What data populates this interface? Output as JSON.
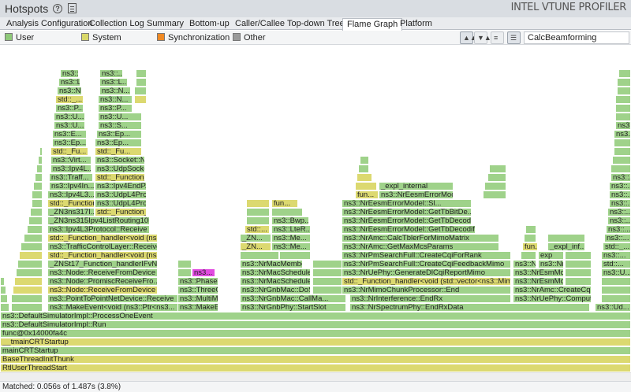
{
  "app": {
    "title": "Hotspots",
    "brand": "INTEL VTUNE PROFILER"
  },
  "tabs": [
    {
      "label": "Analysis Configuration"
    },
    {
      "label": "Collection Log"
    },
    {
      "label": "Summary"
    },
    {
      "label": "Bottom-up"
    },
    {
      "label": "Caller/Callee"
    },
    {
      "label": "Top-down Tree"
    },
    {
      "label": "Flame Graph",
      "active": true
    },
    {
      "label": "Platform"
    }
  ],
  "legend": [
    {
      "label": "User",
      "color": "#8fc97a"
    },
    {
      "label": "System",
      "color": "#d9d86a"
    },
    {
      "label": "Synchronization",
      "color": "#f08a24"
    },
    {
      "label": "Other",
      "color": "#9a9a9a"
    }
  ],
  "toolbar": {
    "tools": [
      "flame-icon",
      "flame-filter-icon",
      "zoom-out-icon",
      "highlight-icon"
    ]
  },
  "search": {
    "value": "CalcBeamforming"
  },
  "colors": {
    "user": "#9fd28a",
    "system": "#dcd970",
    "match": "#e14be0",
    "border": "#7fb56a"
  },
  "flame": [
    [
      0,
      800,
      "Total",
      "u"
    ],
    [
      0,
      800,
      "RtlUserThreadStart",
      "s"
    ],
    [
      0,
      800,
      "BaseThreadInitThunk",
      "s"
    ],
    [
      0,
      800,
      "mainCRTStartup",
      "u"
    ],
    [
      0,
      800,
      "__tmainCRTStartup",
      "s"
    ],
    [
      0,
      800,
      "func@0x14000fa4c",
      "u"
    ],
    [
      0,
      800,
      "ns3::DefaultSimulatorImpl::Run",
      "u"
    ],
    [
      0,
      800,
      "ns3::DefaultSimulatorImpl::ProcessOneEvent",
      "u"
    ],
    [
      0,
      12,
      "",
      "u"
    ],
    [
      14,
      40,
      "",
      "u"
    ],
    [
      60,
      194,
      "ns3::MakeEvent<void (ns3::Ptr<ns3...",
      "u"
    ],
    [
      225,
      52,
      "ns3::MakeEve...",
      "u"
    ],
    [
      304,
      135,
      "ns3::NrGnbPhy::StartSlot",
      "u"
    ],
    [
      443,
      305,
      "ns3::NrSpectrumPhy::EndRxData",
      "u"
    ],
    [
      754,
      46,
      "ns3::Ud...",
      "u"
    ],
    [
      0,
      10,
      "",
      "u"
    ],
    [
      14,
      40,
      "",
      "u"
    ],
    [
      60,
      194,
      "ns3::PointToPointNetDevice::Receive",
      "u"
    ],
    [
      225,
      52,
      "ns3::MultiMod...",
      "u"
    ],
    [
      304,
      135,
      "ns3::NrGnbMac::CallMa...",
      "u"
    ],
    [
      443,
      205,
      "ns3::NrInterference::EndRx",
      "u"
    ],
    [
      650,
      100,
      "ns3::NrUePhy::Comput...",
      "u"
    ],
    [
      762,
      38,
      "",
      "u"
    ],
    [
      0,
      8,
      "",
      "u"
    ],
    [
      16,
      38,
      "",
      "s"
    ],
    [
      60,
      140,
      "ns3::Node::ReceiveFromDevice",
      "s"
    ],
    [
      225,
      52,
      "ns3::ThreeG...",
      "u"
    ],
    [
      304,
      90,
      "ns3::NrGnbMac::DoSl...",
      "u"
    ],
    [
      396,
      43,
      "",
      "u"
    ],
    [
      433,
      215,
      "ns3::NrMimoChunkProcessor::End",
      "u"
    ],
    [
      650,
      100,
      "ns3::NrAmc::CreateCq...",
      "u"
    ],
    [
      762,
      38,
      "",
      "u"
    ],
    [
      0,
      6,
      "",
      "u"
    ],
    [
      18,
      36,
      "",
      "s"
    ],
    [
      60,
      140,
      "ns3::Node::PromiscReceiveFro...",
      "u"
    ],
    [
      225,
      52,
      "ns3::Phased...",
      "u"
    ],
    [
      304,
      90,
      "ns3::NrMacSchedule...",
      "u"
    ],
    [
      396,
      38,
      "",
      "u"
    ],
    [
      433,
      215,
      "std::_Function_handler<void (std::vector<ns3::MimoSign...",
      "s"
    ],
    [
      650,
      65,
      "ns3::NrEsmModel...",
      "u"
    ],
    [
      716,
      34,
      "",
      "u"
    ],
    [
      762,
      38,
      "",
      "u"
    ],
    [
      20,
      34,
      "",
      "u"
    ],
    [
      60,
      140,
      "ns3::Node::ReceiveFromDevice",
      "u"
    ],
    [
      225,
      18,
      "",
      "u"
    ],
    [
      243,
      30,
      "ns3...",
      "m"
    ],
    [
      304,
      90,
      "ns3::NrMacSchedule...",
      "u"
    ],
    [
      396,
      38,
      "",
      "u"
    ],
    [
      433,
      215,
      "ns3::NrUePhy::GenerateDlCqiReportMimo",
      "u"
    ],
    [
      650,
      65,
      "ns3::NrEsmModel...",
      "u"
    ],
    [
      716,
      34,
      "",
      "u"
    ],
    [
      762,
      38,
      "ns3::U...",
      "u"
    ],
    [
      22,
      32,
      "",
      "u"
    ],
    [
      60,
      140,
      "_ZNSt17_Function_handlerIFvN3ns...",
      "u"
    ],
    [
      225,
      18,
      "",
      "u"
    ],
    [
      304,
      80,
      "ns3::NrMacMember...",
      "u"
    ],
    [
      396,
      38,
      "",
      "u"
    ],
    [
      433,
      215,
      "ns3::NrPmSearchFull::CreateCqiFeedbackMimo",
      "u"
    ],
    [
      650,
      30,
      "ns3::Nr...",
      "u"
    ],
    [
      682,
      33,
      "ns3::NrEes...",
      "u"
    ],
    [
      716,
      34,
      "",
      "u"
    ],
    [
      762,
      38,
      "std::...",
      "u"
    ],
    [
      24,
      30,
      "",
      "s"
    ],
    [
      60,
      140,
      "std::_Function_handler<void (ns3::...",
      "s"
    ],
    [
      304,
      50,
      "",
      "u"
    ],
    [
      354,
      40,
      "",
      "u"
    ],
    [
      433,
      215,
      "ns3::NrPmSearchFull::CreateCqiForRank",
      "u"
    ],
    [
      660,
      20,
      "",
      "u"
    ],
    [
      682,
      33,
      "exp",
      "u"
    ],
    [
      716,
      34,
      "",
      "u"
    ],
    [
      762,
      38,
      "ns3::...",
      "u"
    ],
    [
      26,
      28,
      "",
      "u"
    ],
    [
      60,
      140,
      "ns3::TrafficControlLayer::Receive",
      "u"
    ],
    [
      304,
      40,
      "_ZN...",
      "s"
    ],
    [
      344,
      50,
      "ns3::Me...",
      "u"
    ],
    [
      433,
      200,
      "ns3::NrAmc::GetMaxMcsParams",
      "u"
    ],
    [
      662,
      20,
      "fun...",
      "s"
    ],
    [
      694,
      48,
      "_expl_inf...",
      "u"
    ],
    [
      764,
      36,
      "std::_...",
      "u"
    ],
    [
      30,
      24,
      "",
      "u"
    ],
    [
      60,
      140,
      "std::_Function_handler<void (ns3::...",
      "s"
    ],
    [
      304,
      40,
      "_ZN...",
      "u"
    ],
    [
      344,
      50,
      "ns3::Me...",
      "u"
    ],
    [
      433,
      200,
      "ns3::NrAmc::CalcTblerForMimoMatrix",
      "u"
    ],
    [
      664,
      16,
      "",
      "u"
    ],
    [
      694,
      48,
      "",
      "u"
    ],
    [
      766,
      34,
      "ns3::...",
      "u"
    ],
    [
      34,
      20,
      "",
      "u"
    ],
    [
      60,
      130,
      "ns3::Ipv4L3Protocol::Receive",
      "u"
    ],
    [
      310,
      32,
      "std::...",
      "s"
    ],
    [
      344,
      50,
      "ns3::LteR...",
      "u"
    ],
    [
      433,
      170,
      "ns3::NrEesmErrorModel::GetTbDecodificationS...",
      "u"
    ],
    [
      666,
      14,
      "",
      "u"
    ],
    [
      768,
      32,
      "ns3::...",
      "u"
    ],
    [
      36,
      18,
      "",
      "u"
    ],
    [
      60,
      130,
      "_ZN3ns315Ipv4ListRouting10Rout...",
      "u"
    ],
    [
      312,
      30,
      "",
      "u"
    ],
    [
      344,
      48,
      "ns3::Bwp...",
      "u"
    ],
    [
      433,
      165,
      "ns3::NrEesmErrorModel::GetTbDecod...",
      "u"
    ],
    [
      770,
      30,
      "ns3::...",
      "u"
    ],
    [
      38,
      16,
      "",
      "u"
    ],
    [
      60,
      60,
      "_ZN3ns317I...",
      "u"
    ],
    [
      120,
      66,
      "std::_Function_h...",
      "s"
    ],
    [
      312,
      30,
      "",
      "u"
    ],
    [
      344,
      40,
      "",
      "u"
    ],
    [
      433,
      165,
      "ns3::NrEesmErrorModel::GetTbBitDe...",
      "u"
    ],
    [
      770,
      30,
      "ns3::...",
      "u"
    ],
    [
      40,
      14,
      "",
      "u"
    ],
    [
      60,
      60,
      "std::_Function...",
      "s"
    ],
    [
      120,
      66,
      "ns3::UdpL4Proto...",
      "u"
    ],
    [
      312,
      30,
      "",
      "s"
    ],
    [
      344,
      34,
      "fun...",
      "s"
    ],
    [
      433,
      165,
      "ns3::NrEesmErrorModel::Sl...",
      "u"
    ],
    [
      772,
      28,
      "ns3::...",
      "u"
    ],
    [
      40,
      14,
      "",
      "u"
    ],
    [
      60,
      60,
      "ns3::Ipv4L3...",
      "u"
    ],
    [
      120,
      66,
      "ns3::UdpL4Proto...",
      "u"
    ],
    [
      450,
      30,
      "fun...",
      "s"
    ],
    [
      480,
      95,
      "ns3::NrEesmErrorModel::Sl...",
      "u"
    ],
    [
      612,
      30,
      "",
      "u"
    ],
    [
      772,
      28,
      "ns3::...",
      "u"
    ],
    [
      42,
      12,
      "",
      "u"
    ],
    [
      62,
      58,
      "ns3::Ipv4In...",
      "u"
    ],
    [
      120,
      66,
      "ns3::Ipv4EndP...",
      "u"
    ],
    [
      450,
      28,
      "",
      "s"
    ],
    [
      480,
      95,
      "_expl_internal",
      "u"
    ],
    [
      614,
      28,
      "",
      "u"
    ],
    [
      772,
      28,
      "ns3::...",
      "u"
    ],
    [
      44,
      10,
      "",
      "u"
    ],
    [
      62,
      56,
      "ns3::Traff...",
      "u"
    ],
    [
      120,
      64,
      "std::_Function_...",
      "s"
    ],
    [
      452,
      20,
      "",
      "s"
    ],
    [
      618,
      24,
      "",
      "u"
    ],
    [
      774,
      26,
      "ns3::...",
      "u"
    ],
    [
      46,
      8,
      "",
      "u"
    ],
    [
      64,
      52,
      "ns3::Ipv4L...",
      "u"
    ],
    [
      120,
      64,
      "ns3::UdpSocke...",
      "u"
    ],
    [
      454,
      14,
      "",
      "u"
    ],
    [
      620,
      22,
      "",
      "u"
    ],
    [
      774,
      26,
      "",
      "u"
    ],
    [
      48,
      6,
      "",
      "u"
    ],
    [
      64,
      52,
      "ns3::Virt...",
      "u"
    ],
    [
      120,
      64,
      "ns3::Socket::N...",
      "u"
    ],
    [
      456,
      12,
      "",
      "u"
    ],
    [
      776,
      24,
      "",
      "u"
    ],
    [
      50,
      4,
      "",
      "u"
    ],
    [
      64,
      48,
      "std::_Fu...",
      "s"
    ],
    [
      120,
      60,
      "std::_Fu...",
      "s"
    ],
    [
      778,
      22,
      "",
      "u"
    ],
    [
      66,
      44,
      "ns3::Ep...",
      "u"
    ],
    [
      120,
      60,
      "ns3::Ep...",
      "u"
    ],
    [
      778,
      22,
      "",
      "u"
    ],
    [
      66,
      44,
      "ns3::E...",
      "u"
    ],
    [
      122,
      58,
      "ns3::Ep...",
      "u"
    ],
    [
      778,
      22,
      "ns3...",
      "u"
    ],
    [
      68,
      40,
      "ns3::U...",
      "u"
    ],
    [
      124,
      56,
      "ns3::S...",
      "u"
    ],
    [
      780,
      20,
      "ns3...",
      "u"
    ],
    [
      68,
      40,
      "ns3::U...",
      "u"
    ],
    [
      124,
      56,
      "ns3::U...",
      "u"
    ],
    [
      780,
      20,
      "",
      "u"
    ],
    [
      70,
      36,
      "ns3::P...",
      "u"
    ],
    [
      124,
      44,
      "ns3::P...",
      "u"
    ],
    [
      780,
      20,
      "",
      "u"
    ],
    [
      70,
      36,
      "std::_...",
      "s"
    ],
    [
      124,
      44,
      "ns3::N...",
      "u"
    ],
    [
      170,
      16,
      "",
      "s"
    ],
    [
      780,
      20,
      "",
      "u"
    ],
    [
      72,
      32,
      "ns3::N...",
      "u"
    ],
    [
      126,
      40,
      "ns3::N...",
      "u"
    ],
    [
      170,
      16,
      "",
      "u"
    ],
    [
      782,
      18,
      "",
      "u"
    ],
    [
      74,
      28,
      "ns3::L...",
      "u"
    ],
    [
      126,
      36,
      "ns3::L...",
      "u"
    ],
    [
      172,
      14,
      "",
      "u"
    ],
    [
      782,
      18,
      "",
      "u"
    ],
    [
      76,
      24,
      "ns3::...",
      "u"
    ],
    [
      126,
      30,
      "ns3::...",
      "u"
    ],
    [
      172,
      14,
      "",
      "u"
    ],
    [
      784,
      16,
      "",
      "u"
    ]
  ],
  "status": {
    "text": "Matched: 0.056s of 1.487s (3.8%)"
  }
}
